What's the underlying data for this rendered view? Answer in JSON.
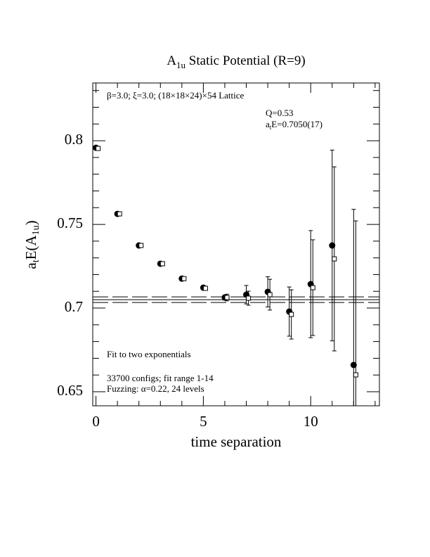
{
  "chart_data": {
    "type": "scatter",
    "title": {
      "main": "A",
      "sub": "1u",
      "rest": " Static Potential (R=9)"
    },
    "xlabel": "time separation",
    "ylabel": {
      "a": "a",
      "sub1": "t",
      "mid": "E(A",
      "sub2": "1u",
      "end": ")"
    },
    "annotations": {
      "lattice": "β=3.0; ξ=3.0; (18×18×24)×54 Lattice",
      "q": "Q=0.53",
      "fit_a": "a",
      "fit_sub": "t",
      "fit_rest": "E=0.7050(17)",
      "fit_desc": "Fit to two exponentials",
      "configs": "33700 configs; fit range 1-14",
      "fuzzing": "Fuzzing: α=0.22, 24 levels"
    },
    "fit": {
      "value": 0.705,
      "error": 0.0017
    },
    "xlim": [
      -0.15,
      13.2
    ],
    "ylim": [
      0.6416,
      0.8345
    ],
    "xticks": [
      0,
      5,
      10
    ],
    "yticks": [
      0.65,
      0.7,
      0.75,
      0.8
    ],
    "xminor": [
      1,
      2,
      3,
      4,
      6,
      7,
      8,
      9,
      11,
      12,
      13
    ],
    "yminor": [
      0.66,
      0.67,
      0.68,
      0.69,
      0.71,
      0.72,
      0.73,
      0.74,
      0.76,
      0.77,
      0.78,
      0.79,
      0.81,
      0.82,
      0.83
    ],
    "series": [
      {
        "marker": "filled-circle",
        "color": "#000",
        "x": [
          0,
          1,
          2,
          3,
          4,
          5,
          6,
          7,
          8,
          9,
          10,
          11,
          12
        ],
        "values": [
          0.7958,
          0.7563,
          0.7374,
          0.7265,
          0.7176,
          0.7122,
          0.7063,
          0.708,
          0.7097,
          0.6979,
          0.7143,
          0.7374,
          0.666
        ],
        "errors": [
          0.0008,
          0.0008,
          0.0008,
          0.0008,
          0.0008,
          0.001,
          0.0015,
          0.0055,
          0.009,
          0.0147,
          0.032,
          0.057,
          0.093
        ]
      },
      {
        "marker": "open-square",
        "color": "#000",
        "x": [
          0.1,
          1.1,
          2.1,
          3.1,
          4.1,
          5.1,
          6.1,
          7.1,
          8.1,
          9.1,
          10.1,
          11.1,
          12.1
        ],
        "values": [
          0.7954,
          0.7563,
          0.7374,
          0.7265,
          0.7176,
          0.7118,
          0.7063,
          0.7059,
          0.708,
          0.6962,
          0.7122,
          0.7294,
          0.6601
        ],
        "errors": [
          0.0008,
          0.0008,
          0.0008,
          0.0008,
          0.0008,
          0.001,
          0.002,
          0.0042,
          0.0092,
          0.0147,
          0.0286,
          0.055,
          0.092
        ]
      }
    ]
  }
}
